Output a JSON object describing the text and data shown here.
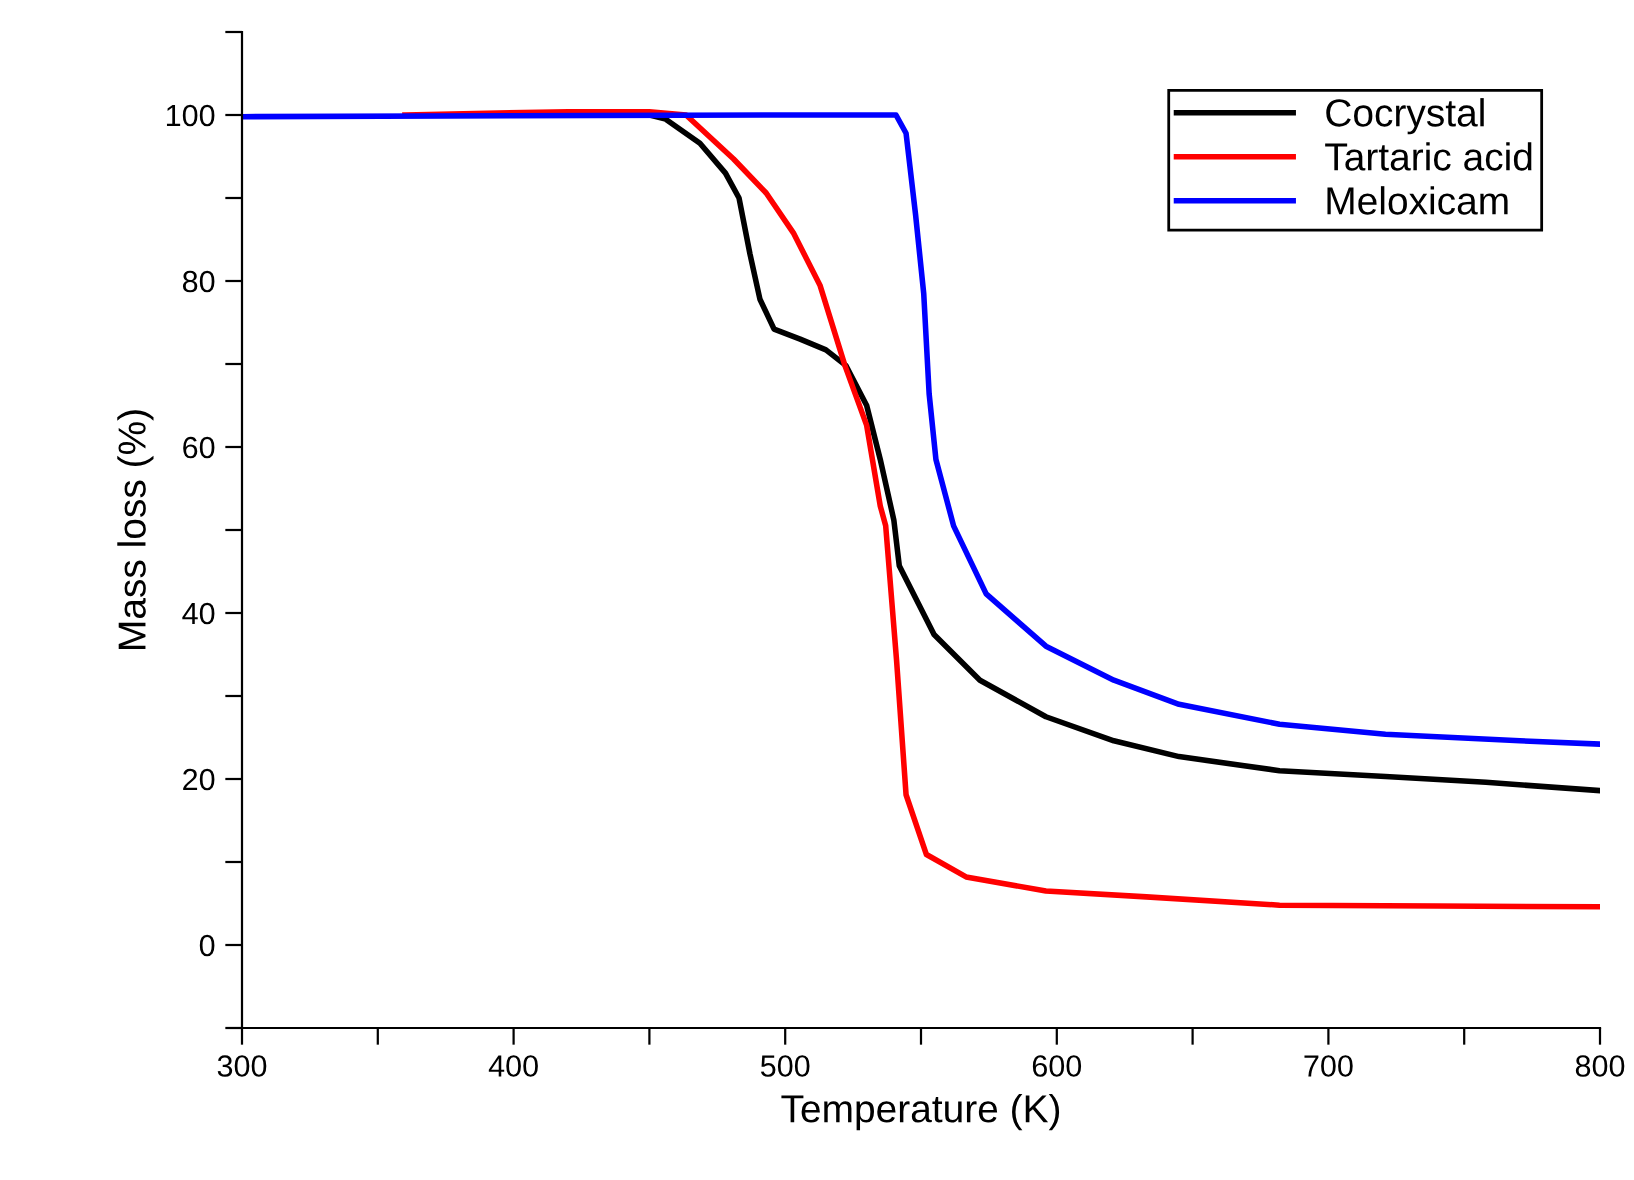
{
  "chart_data": {
    "type": "line",
    "xlabel": "Temperature (K)",
    "ylabel": "Mass loss (%)",
    "xlim": [
      300,
      800
    ],
    "ylim": [
      -10,
      110
    ],
    "xticks": [
      300,
      {
        "value": 350,
        "label": null
      },
      400,
      {
        "value": 450,
        "label": null
      },
      500,
      {
        "value": 550,
        "label": null
      },
      600,
      {
        "value": 650,
        "label": null
      },
      700,
      {
        "value": 750,
        "label": null
      },
      800
    ],
    "yticks": [
      {
        "value": -10,
        "label": null
      },
      0,
      {
        "value": 10,
        "label": null
      },
      20,
      {
        "value": 30,
        "label": null
      },
      40,
      {
        "value": 50,
        "label": null
      },
      60,
      {
        "value": 70,
        "label": null
      },
      80,
      {
        "value": 90,
        "label": null
      },
      100,
      {
        "value": 110,
        "label": null
      }
    ],
    "grid": false,
    "legend": "top right",
    "marker": "none",
    "line_style": "solid",
    "series": [
      {
        "name": "Cocrystal",
        "color": "#000000",
        "x": [
          450,
          456,
          468.6,
          478,
          483,
          487,
          490.7,
          495.9,
          505.5,
          515,
          522.4,
          530,
          535,
          540,
          542,
          554.8,
          571.7,
          596,
          621,
          645,
          682,
          721,
          758,
          800
        ],
        "values": [
          100,
          99.5,
          96.6,
          93,
          90,
          83.3,
          77.8,
          74.2,
          73,
          71.7,
          69.8,
          65,
          58.5,
          51.2,
          45.7,
          37.4,
          31.9,
          27.5,
          24.6,
          22.7,
          21,
          20.3,
          19.6,
          18.6
        ]
      },
      {
        "name": "Tartaric acid",
        "color": "#ff0000",
        "x": [
          360,
          420,
          450,
          463.5,
          481,
          493,
          503,
          512.8,
          522,
          530,
          535,
          537,
          541,
          544.5,
          552,
          566.6,
          596,
          633,
          682,
          740,
          800
        ],
        "values": [
          100,
          100.4,
          100.4,
          100,
          94.7,
          90.6,
          85.8,
          79.5,
          69.8,
          62.6,
          52.9,
          50.5,
          34.3,
          18.1,
          10.9,
          8.2,
          6.5,
          5.8,
          4.8,
          4.7,
          4.6
        ]
      },
      {
        "name": "Meloxicam",
        "color": "#0000ff",
        "x": [
          300,
          400,
          500,
          540.8,
          544.5,
          548,
          551,
          553,
          555.5,
          562,
          574,
          596,
          621,
          645,
          682,
          721,
          770.5,
          800
        ],
        "values": [
          99.8,
          99.9,
          100,
          100,
          97.8,
          88,
          78.5,
          66.4,
          58.5,
          50.5,
          42.3,
          36,
          31.9,
          29,
          26.6,
          25.4,
          24.6,
          24.2
        ]
      }
    ]
  }
}
